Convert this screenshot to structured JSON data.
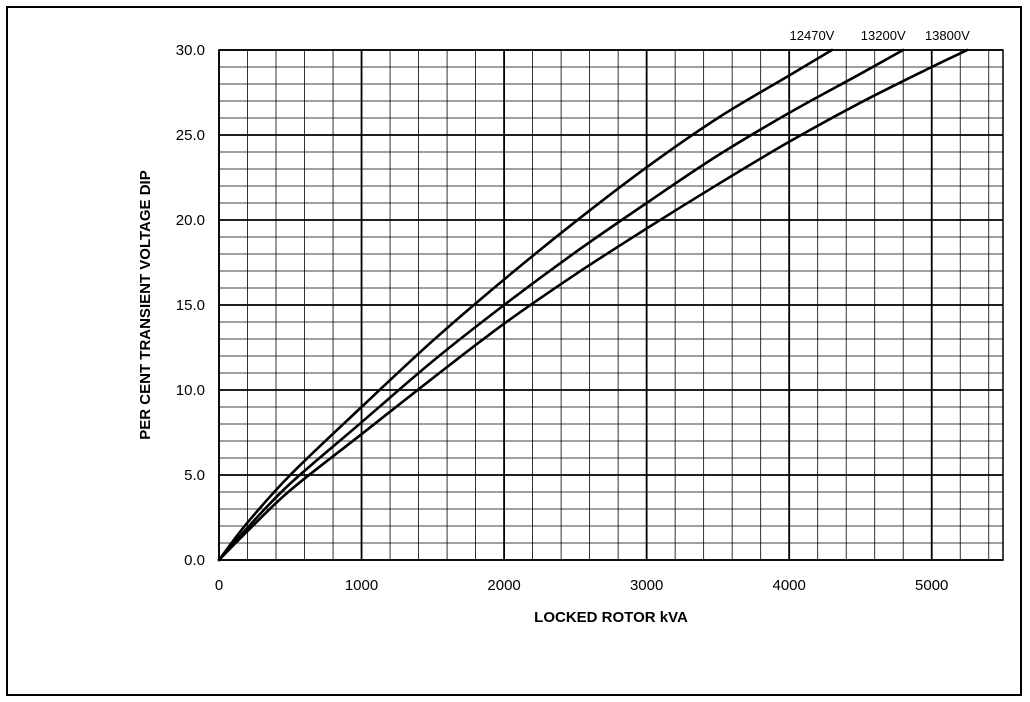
{
  "chart_data": {
    "type": "line",
    "title": "",
    "xlabel": "LOCKED ROTOR kVA",
    "ylabel": "PER CENT TRANSIENT VOLTAGE DIP",
    "xlim": [
      0,
      5500
    ],
    "ylim": [
      0,
      30
    ],
    "x_ticks": [
      0,
      1000,
      2000,
      3000,
      4000,
      5000
    ],
    "x_tick_labels": [
      "0",
      "1000",
      "2000",
      "3000",
      "4000",
      "5000"
    ],
    "y_ticks": [
      0,
      5,
      10,
      15,
      20,
      25,
      30
    ],
    "y_tick_labels": [
      "0.0",
      "5.0",
      "10.0",
      "15.0",
      "20.0",
      "25.0",
      "30.0"
    ],
    "grid": true,
    "minor_grid": {
      "x_step": 200,
      "y_step": 1
    },
    "series_label_position": "top, at curve ends",
    "series": [
      {
        "name": "12470V",
        "x": [
          0,
          200,
          500,
          1000,
          1500,
          2000,
          2500,
          3000,
          3500,
          4000,
          4300
        ],
        "y": [
          0,
          2.2,
          5.0,
          9.0,
          12.9,
          16.5,
          19.9,
          23.1,
          26.0,
          28.5,
          30.0
        ]
      },
      {
        "name": "13200V",
        "x": [
          0,
          200,
          500,
          1000,
          1500,
          2000,
          2500,
          3000,
          3500,
          4000,
          4500,
          4800
        ],
        "y": [
          0,
          1.9,
          4.5,
          8.1,
          11.7,
          15.0,
          18.1,
          21.0,
          23.8,
          26.3,
          28.6,
          30.0
        ]
      },
      {
        "name": "13800V",
        "x": [
          0,
          200,
          500,
          1000,
          1500,
          2000,
          2500,
          3000,
          3500,
          4000,
          4500,
          5000,
          5250
        ],
        "y": [
          0,
          1.7,
          4.1,
          7.4,
          10.7,
          13.9,
          16.8,
          19.5,
          22.1,
          24.6,
          26.9,
          29.0,
          30.0
        ]
      }
    ]
  }
}
